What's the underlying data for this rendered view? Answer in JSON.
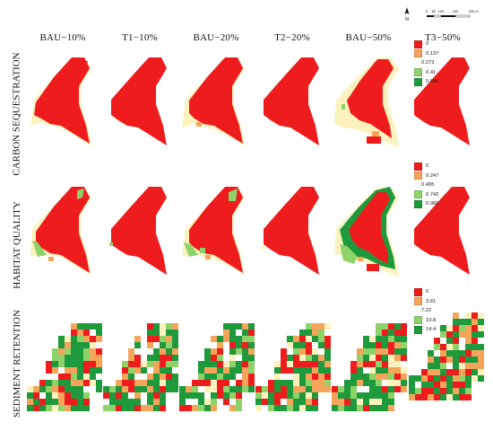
{
  "columns": [
    "BAU−10%",
    "T1−10%",
    "BAU−20%",
    "T2−20%",
    "BAU−50%",
    "T3−50%"
  ],
  "rows": [
    "CARBON SEQUESTRATION",
    "HABITAT QUALITY",
    "SEDIMENT RETENTION"
  ],
  "north_arrow": "N",
  "scale_bar": {
    "ticks": [
      "0",
      "50",
      "100",
      "150",
      "200 m"
    ]
  },
  "legends": {
    "carbon": [
      {
        "label": "0",
        "color": "#ee1c1c"
      },
      {
        "label": "0.137",
        "color": "#f5a55a"
      },
      {
        "label": "0.273",
        "color": "#fbf2bd"
      },
      {
        "label": "0.41",
        "color": "#8ed36a"
      },
      {
        "label": "0.546",
        "color": "#1e9a3c"
      }
    ],
    "habitat": [
      {
        "label": "0",
        "color": "#ee1c1c"
      },
      {
        "label": "0.247",
        "color": "#f5a55a"
      },
      {
        "label": "0.495",
        "color": "#fbf2bd"
      },
      {
        "label": "0.742",
        "color": "#8ed36a"
      },
      {
        "label": "0.989",
        "color": "#1e9a3c"
      }
    ],
    "sediment": [
      {
        "label": "0",
        "color": "#ee1c1c"
      },
      {
        "label": "3.61",
        "color": "#f5a55a"
      },
      {
        "label": "7.22",
        "color": "#fbf2bd"
      },
      {
        "label": "10.8",
        "color": "#8ed36a"
      },
      {
        "label": "14.4",
        "color": "#1e9a3c"
      }
    ]
  }
}
